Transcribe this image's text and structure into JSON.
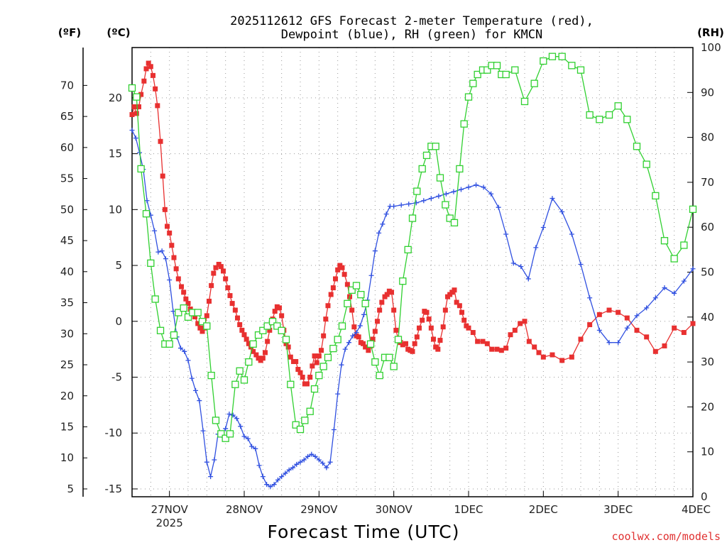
{
  "chart_data": {
    "type": "line",
    "title": "2025112612 GFS Forecast 2-meter Temperature (red), Dewpoint (blue), RH (green) for KMCN",
    "title_lines": [
      "2025112612 GFS Forecast 2-meter Temperature (red),",
      "Dewpoint (blue), RH (green) for KMCN"
    ],
    "xlabel": "Forecast Time (UTC)",
    "credit": "coolwx.com/models",
    "units": {
      "fahrenheit": "(ºF)",
      "celsius": "(ºC)",
      "rh": "(RH)"
    },
    "x_unit": "days since 27NOV 00Z",
    "xlim": [
      -0.5,
      7.0
    ],
    "ylim_celsius": [
      -15.7,
      24.5
    ],
    "ylim_rh": [
      0,
      100
    ],
    "x_ticks": [
      {
        "label": "27NOV",
        "sub": "2025",
        "x": 0
      },
      {
        "label": "28NOV",
        "x": 1
      },
      {
        "label": "29NOV",
        "x": 2
      },
      {
        "label": "30NOV",
        "x": 3
      },
      {
        "label": "1DEC",
        "x": 4
      },
      {
        "label": "2DEC",
        "x": 5
      },
      {
        "label": "3DEC",
        "x": 6
      },
      {
        "label": "4DEC",
        "x": 7
      }
    ],
    "y_ticks_celsius": [
      "-15",
      "-10",
      "-5",
      "0",
      "5",
      "10",
      "15",
      "20"
    ],
    "y_ticks_fahrenheit": [
      "5",
      "10",
      "15",
      "20",
      "25",
      "30",
      "35",
      "40",
      "45",
      "50",
      "55",
      "60",
      "65",
      "70"
    ],
    "y_ticks_rh": [
      "0",
      "10",
      "20",
      "30",
      "40",
      "50",
      "60",
      "70",
      "80",
      "90",
      "100"
    ],
    "series": [
      {
        "name": "Temperature (°C)",
        "color": "#e83030",
        "marker": "square-filled",
        "x": [
          -0.5,
          -0.47,
          -0.44,
          -0.41,
          -0.38,
          -0.34,
          -0.31,
          -0.28,
          -0.25,
          -0.22,
          -0.19,
          -0.16,
          -0.12,
          -0.09,
          -0.06,
          -0.03,
          0.0,
          0.03,
          0.06,
          0.09,
          0.12,
          0.16,
          0.19,
          0.22,
          0.25,
          0.28,
          0.31,
          0.34,
          0.38,
          0.41,
          0.44,
          0.47,
          0.5,
          0.53,
          0.56,
          0.59,
          0.62,
          0.66,
          0.69,
          0.72,
          0.75,
          0.78,
          0.81,
          0.84,
          0.88,
          0.91,
          0.94,
          0.97,
          1.0,
          1.03,
          1.06,
          1.09,
          1.12,
          1.16,
          1.19,
          1.22,
          1.25,
          1.28,
          1.31,
          1.34,
          1.38,
          1.41,
          1.44,
          1.47,
          1.5,
          1.53,
          1.56,
          1.59,
          1.62,
          1.66,
          1.69,
          1.72,
          1.75,
          1.78,
          1.81,
          1.84,
          1.88,
          1.91,
          1.94,
          1.97,
          2.0,
          2.03,
          2.06,
          2.09,
          2.12,
          2.16,
          2.19,
          2.22,
          2.25,
          2.28,
          2.31,
          2.34,
          2.38,
          2.41,
          2.44,
          2.47,
          2.5,
          2.53,
          2.56,
          2.59,
          2.62,
          2.66,
          2.69,
          2.72,
          2.75,
          2.78,
          2.81,
          2.84,
          2.88,
          2.91,
          2.94,
          2.97,
          3.0,
          3.03,
          3.06,
          3.09,
          3.12,
          3.16,
          3.19,
          3.22,
          3.25,
          3.28,
          3.31,
          3.34,
          3.38,
          3.41,
          3.44,
          3.47,
          3.5,
          3.53,
          3.56,
          3.59,
          3.62,
          3.66,
          3.69,
          3.72,
          3.75,
          3.78,
          3.81,
          3.84,
          3.88,
          3.91,
          3.94,
          3.97,
          4.0,
          4.06,
          4.12,
          4.19,
          4.25,
          4.31,
          4.38,
          4.44,
          4.5,
          4.56,
          4.62,
          4.69,
          4.75,
          4.81,
          4.88,
          4.94,
          5.0,
          5.12,
          5.25,
          5.38,
          5.5,
          5.62,
          5.75,
          5.88,
          6.0,
          6.12,
          6.25,
          6.38,
          6.5,
          6.62,
          6.75,
          6.88,
          7.0
        ],
        "values": [
          18.5,
          19.2,
          18.6,
          19.2,
          20.3,
          21.5,
          22.6,
          23.1,
          22.8,
          22.0,
          20.8,
          19.3,
          16.1,
          13.0,
          10.0,
          8.5,
          7.9,
          6.8,
          5.7,
          4.7,
          3.8,
          3.1,
          2.6,
          2.0,
          1.6,
          1.1,
          0.8,
          0.4,
          -0.2,
          -0.6,
          -0.9,
          -0.6,
          0.5,
          1.8,
          3.2,
          4.3,
          4.8,
          5.1,
          4.9,
          4.5,
          3.8,
          3.0,
          2.3,
          1.6,
          1.0,
          0.3,
          -0.3,
          -0.8,
          -1.2,
          -1.6,
          -2.0,
          -2.3,
          -2.7,
          -3.0,
          -3.3,
          -3.5,
          -3.3,
          -2.8,
          -1.8,
          -0.8,
          0.2,
          0.9,
          1.3,
          1.2,
          0.5,
          -0.8,
          -2.0,
          -2.3,
          -3.2,
          -3.6,
          -3.6,
          -4.3,
          -4.6,
          -5.0,
          -5.6,
          -5.6,
          -5.0,
          -4.0,
          -3.1,
          -3.7,
          -3.1,
          -2.6,
          -1.3,
          0.2,
          1.4,
          2.4,
          3.0,
          3.8,
          4.6,
          5.0,
          4.8,
          4.2,
          3.3,
          2.2,
          1.0,
          -0.5,
          -1.3,
          -1.4,
          -1.9,
          -2.0,
          -2.3,
          -2.6,
          -2.2,
          -1.6,
          -0.9,
          0.0,
          1.0,
          1.7,
          2.2,
          2.4,
          2.7,
          2.6,
          1.0,
          -0.8,
          -1.6,
          -1.9,
          -2.1,
          -2.0,
          -2.5,
          -2.6,
          -2.7,
          -2.0,
          -1.4,
          -0.6,
          0.1,
          0.9,
          0.8,
          0.2,
          -0.6,
          -1.6,
          -2.3,
          -2.5,
          -1.7,
          -0.5,
          1.0,
          2.2,
          2.4,
          2.6,
          2.8,
          1.7,
          1.4,
          0.8,
          0.1,
          -0.4,
          -0.6,
          -1.0,
          -1.8,
          -1.8,
          -2.0,
          -2.5,
          -2.5,
          -2.6,
          -2.4,
          -1.2,
          -0.8,
          -0.2,
          0.0,
          -1.8,
          -2.3,
          -2.8,
          -3.2,
          -3.0,
          -3.5,
          -3.2,
          -1.6,
          -0.3,
          0.6,
          1.0,
          0.8,
          0.3,
          -0.8,
          -1.4,
          -2.7,
          -2.2,
          -0.6,
          -1.0,
          -0.2
        ]
      },
      {
        "name": "Dewpoint (°C)",
        "color": "#3050e0",
        "marker": "plus",
        "x": [
          -0.5,
          -0.45,
          -0.4,
          -0.35,
          -0.3,
          -0.25,
          -0.2,
          -0.15,
          -0.1,
          -0.05,
          0.0,
          0.05,
          0.1,
          0.15,
          0.2,
          0.25,
          0.3,
          0.35,
          0.4,
          0.45,
          0.5,
          0.55,
          0.6,
          0.65,
          0.7,
          0.75,
          0.8,
          0.85,
          0.9,
          0.95,
          1.0,
          1.05,
          1.1,
          1.15,
          1.2,
          1.25,
          1.3,
          1.35,
          1.4,
          1.45,
          1.5,
          1.55,
          1.6,
          1.65,
          1.7,
          1.75,
          1.8,
          1.85,
          1.9,
          1.95,
          2.0,
          2.05,
          2.1,
          2.15,
          2.2,
          2.25,
          2.3,
          2.35,
          2.4,
          2.45,
          2.5,
          2.55,
          2.6,
          2.65,
          2.7,
          2.75,
          2.8,
          2.85,
          2.9,
          2.95,
          3.0,
          3.1,
          3.2,
          3.3,
          3.4,
          3.5,
          3.6,
          3.7,
          3.8,
          3.9,
          4.0,
          4.1,
          4.2,
          4.3,
          4.4,
          4.5,
          4.6,
          4.7,
          4.8,
          4.9,
          5.0,
          5.12,
          5.25,
          5.38,
          5.5,
          5.62,
          5.75,
          5.88,
          6.0,
          6.12,
          6.25,
          6.38,
          6.5,
          6.62,
          6.75,
          6.88,
          7.0
        ],
        "values": [
          17.1,
          16.4,
          15.1,
          13.6,
          10.8,
          9.5,
          8.1,
          6.2,
          6.3,
          5.6,
          3.7,
          0.9,
          -1.4,
          -2.4,
          -2.7,
          -3.5,
          -5.1,
          -6.2,
          -7.1,
          -9.8,
          -12.6,
          -13.9,
          -12.4,
          -10.1,
          -10.2,
          -9.6,
          -8.3,
          -8.4,
          -8.7,
          -9.4,
          -10.3,
          -10.5,
          -11.2,
          -11.4,
          -12.9,
          -13.9,
          -14.6,
          -14.8,
          -14.6,
          -14.2,
          -13.9,
          -13.6,
          -13.3,
          -13.1,
          -12.8,
          -12.6,
          -12.4,
          -12.1,
          -11.9,
          -12.1,
          -12.4,
          -12.7,
          -13.1,
          -12.6,
          -9.7,
          -6.5,
          -3.9,
          -2.5,
          -1.9,
          -1.3,
          -1.0,
          -0.4,
          0.6,
          1.9,
          4.1,
          6.3,
          7.9,
          8.7,
          9.6,
          10.3,
          10.3,
          10.4,
          10.5,
          10.6,
          10.8,
          11.0,
          11.2,
          11.4,
          11.6,
          11.8,
          12.0,
          12.2,
          12.0,
          11.4,
          10.2,
          7.8,
          5.2,
          4.9,
          3.8,
          6.6,
          8.4,
          11.0,
          9.8,
          7.8,
          5.1,
          2.1,
          -0.8,
          -1.9,
          -1.9,
          -0.6,
          0.5,
          1.2,
          2.1,
          3.0,
          2.5,
          3.6,
          4.7
        ]
      },
      {
        "name": "RH (%)",
        "color": "#30d030",
        "marker": "square-open",
        "x": [
          -0.5,
          -0.44,
          -0.38,
          -0.31,
          -0.25,
          -0.19,
          -0.12,
          -0.06,
          0.0,
          0.06,
          0.12,
          0.19,
          0.25,
          0.31,
          0.38,
          0.44,
          0.5,
          0.56,
          0.62,
          0.69,
          0.75,
          0.81,
          0.88,
          0.94,
          1.0,
          1.06,
          1.12,
          1.19,
          1.25,
          1.31,
          1.38,
          1.44,
          1.5,
          1.56,
          1.62,
          1.69,
          1.75,
          1.81,
          1.88,
          1.94,
          2.0,
          2.06,
          2.12,
          2.19,
          2.25,
          2.31,
          2.38,
          2.44,
          2.5,
          2.56,
          2.62,
          2.69,
          2.75,
          2.81,
          2.88,
          2.94,
          3.0,
          3.06,
          3.12,
          3.19,
          3.25,
          3.31,
          3.38,
          3.44,
          3.5,
          3.56,
          3.62,
          3.69,
          3.75,
          3.81,
          3.88,
          3.94,
          4.0,
          4.06,
          4.12,
          4.19,
          4.25,
          4.31,
          4.38,
          4.44,
          4.5,
          4.62,
          4.75,
          4.88,
          5.0,
          5.12,
          5.25,
          5.38,
          5.5,
          5.62,
          5.75,
          5.88,
          6.0,
          6.12,
          6.25,
          6.38,
          6.5,
          6.62,
          6.75,
          6.88,
          7.0
        ],
        "values": [
          91,
          89,
          73,
          63,
          52,
          44,
          37,
          34,
          34,
          36,
          41,
          42,
          40,
          41,
          41,
          39,
          38,
          27,
          17,
          14,
          13,
          14,
          25,
          28,
          26,
          30,
          34,
          36,
          37,
          38,
          39,
          38,
          37,
          35,
          25,
          16,
          15,
          17,
          19,
          24,
          27,
          29,
          31,
          33,
          35,
          38,
          43,
          46,
          47,
          45,
          43,
          34,
          30,
          27,
          31,
          31,
          29,
          35,
          48,
          55,
          62,
          68,
          73,
          76,
          78,
          78,
          71,
          65,
          62,
          61,
          73,
          83,
          89,
          92,
          94,
          95,
          95,
          96,
          96,
          94,
          94,
          95,
          88,
          92,
          97,
          98,
          98,
          96,
          95,
          85,
          84,
          85,
          87,
          84,
          78,
          74,
          67,
          57,
          53,
          56,
          64
        ]
      }
    ]
  }
}
